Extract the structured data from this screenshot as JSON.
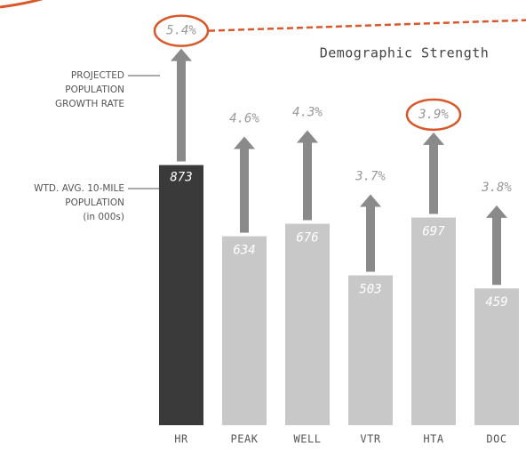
{
  "chart_data": {
    "type": "bar",
    "title": "Demographic Strength",
    "annotations": [
      [
        "PROJECTED",
        "POPULATION",
        "GROWTH RATE"
      ],
      [
        "WTD. AVG. 10-MILE",
        "POPULATION",
        "(in 000s)"
      ]
    ],
    "categories": [
      "HR",
      "PEAK",
      "WELL",
      "VTR",
      "HTA",
      "DOC"
    ],
    "series": [
      {
        "values": [
          873,
          634,
          676,
          503,
          697,
          459
        ],
        "colors": [
          "#3a3a3a",
          "#c8c8c8",
          "#c8c8c8",
          "#c8c8c8",
          "#c8c8c8",
          "#c8c8c8"
        ]
      },
      {
        "values": [
          5.4,
          4.6,
          4.3,
          3.7,
          3.9,
          3.8
        ],
        "value_labels": [
          "5.4%",
          "4.6%",
          "4.3%",
          "3.7%",
          "3.9%",
          "3.8%"
        ],
        "color": "#8a8a8a",
        "circled": [
          true,
          false,
          false,
          false,
          true,
          false
        ]
      }
    ],
    "accent_color": "#d9582b"
  }
}
